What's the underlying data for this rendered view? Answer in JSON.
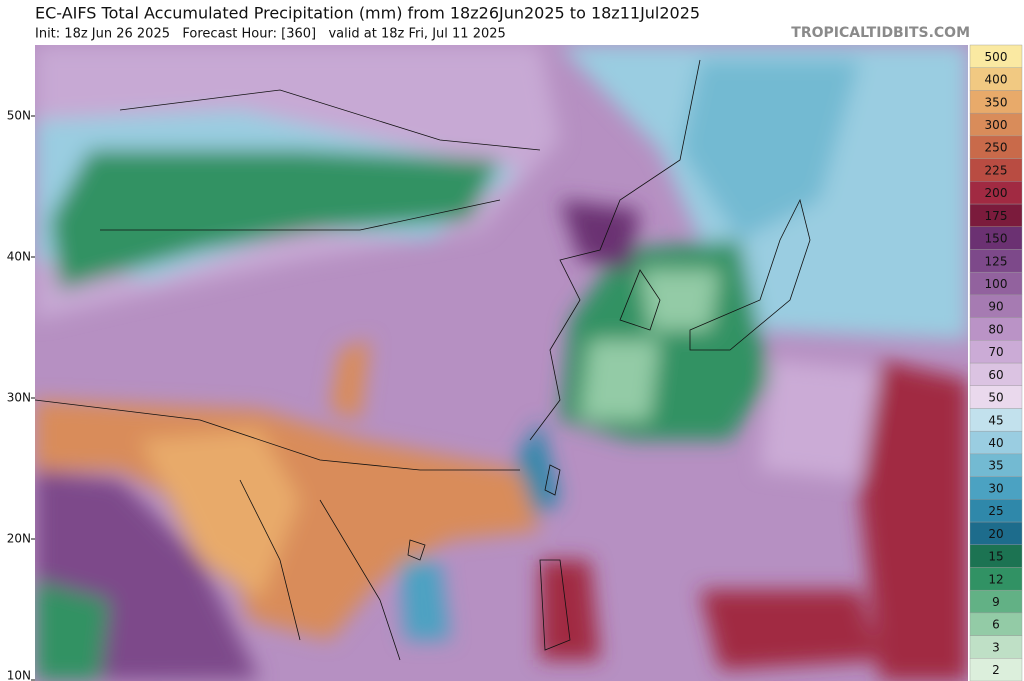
{
  "header": {
    "title": "EC-AIFS Total Accumulated Precipitation (mm) from 18z26Jun2025 to 18z11Jul2025",
    "subtitle": "Init: 18z Jun 26 2025   Forecast Hour: [360]   valid at 18z Fri, Jul 11 2025",
    "source": "TROPICALTIDBITS.COM"
  },
  "map": {
    "lat_labels": [
      "50N",
      "40N",
      "30N",
      "20N",
      "10N"
    ]
  },
  "colorbar": {
    "levels": [
      2,
      3,
      6,
      9,
      12,
      15,
      20,
      25,
      30,
      35,
      40,
      45,
      50,
      60,
      70,
      80,
      90,
      100,
      125,
      150,
      175,
      200,
      225,
      250,
      300,
      350,
      400,
      500
    ],
    "colors": [
      "#dcefdc",
      "#bfe0c6",
      "#93cba6",
      "#62b185",
      "#319264",
      "#1c7352",
      "#1d6c8c",
      "#2f88aa",
      "#4ba2c2",
      "#73bad2",
      "#9acde1",
      "#c2e1ed",
      "#ead9ed",
      "#dbc3e2",
      "#cbabd6",
      "#ba93c6",
      "#a67bb2",
      "#92629e",
      "#7d498a",
      "#6b3172",
      "#7b1b3c",
      "#a12a42",
      "#b94c42",
      "#c96a4a",
      "#d98c5a",
      "#e8aa6a",
      "#f1c982",
      "#fae9a2"
    ]
  }
}
